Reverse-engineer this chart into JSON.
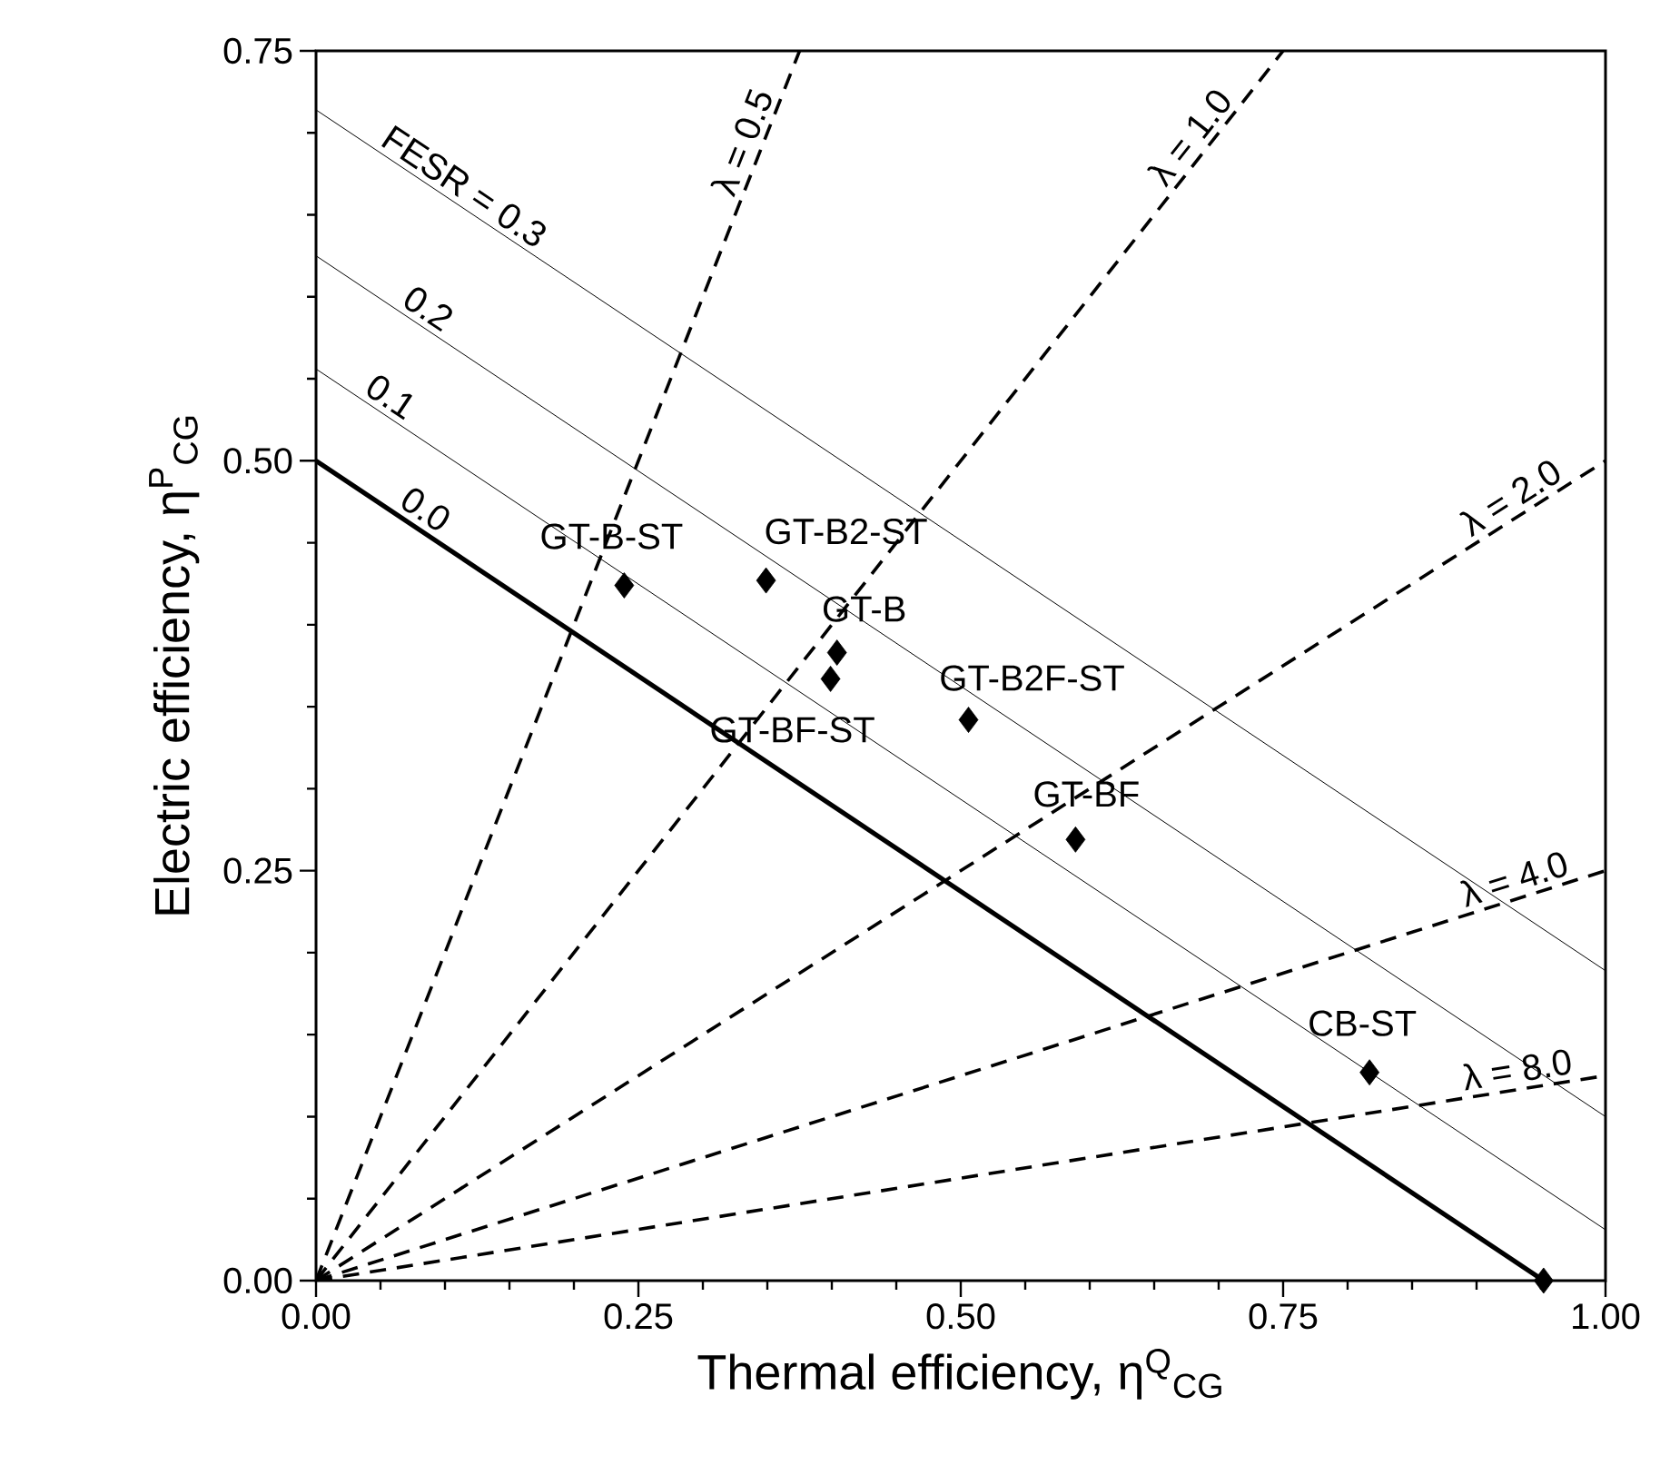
{
  "chart_data": {
    "type": "scatter",
    "xlabel": "Thermal efficiency, η$^{Q}$$_{CG}$",
    "ylabel": "Electric efficiency, η$^{P}$$_{CG}$",
    "xlim": [
      0,
      1
    ],
    "ylim": [
      0,
      0.75
    ],
    "xticks": [
      {
        "value": 0,
        "label": "0.00"
      },
      {
        "value": 0.25,
        "label": "0.25"
      },
      {
        "value": 0.5,
        "label": "0.50"
      },
      {
        "value": 0.75,
        "label": "0.75"
      },
      {
        "value": 1,
        "label": "1.00"
      }
    ],
    "yticks": [
      {
        "value": 0,
        "label": "0.00"
      },
      {
        "value": 0.25,
        "label": "0.25"
      },
      {
        "value": 0.5,
        "label": "0.50"
      },
      {
        "value": 0.75,
        "label": "0.75"
      }
    ],
    "series": [
      {
        "type": "scatter",
        "color": "#000000",
        "marker": "diamond",
        "x": [
          0.239,
          0.349,
          0.404,
          0.399,
          0.506,
          0.589,
          0.817,
          0.952
        ],
        "values": [
          0.424,
          0.427,
          0.383,
          0.367,
          0.342,
          0.269,
          0.127,
          0
        ]
      },
      {
        "type": "line",
        "name": "0.0",
        "color": "#000000",
        "line_style": "solid",
        "x": [
          0,
          0.952
        ],
        "values": [
          0.5,
          0
        ]
      },
      {
        "type": "line",
        "name": "0.1",
        "color": "#000000",
        "line_style": "solid",
        "x": [
          0,
          1
        ],
        "values": [
          0.556,
          0.031
        ]
      },
      {
        "type": "line",
        "name": "0.2",
        "color": "#000000",
        "line_style": "solid",
        "x": [
          0,
          1
        ],
        "values": [
          0.625,
          0.1
        ]
      },
      {
        "type": "line",
        "name": "FESR = 0.3",
        "color": "#000000",
        "line_style": "solid",
        "x": [
          0,
          1
        ],
        "values": [
          0.714,
          0.189
        ]
      },
      {
        "type": "line",
        "name": "λ = 0.5",
        "color": "#000000",
        "line_style": "dashed",
        "x": [
          0,
          0.375
        ],
        "values": [
          0,
          0.75
        ]
      },
      {
        "type": "line",
        "name": "λ = 1.0",
        "color": "#000000",
        "line_style": "dashed",
        "x": [
          0,
          0.75
        ],
        "values": [
          0,
          0.75
        ]
      },
      {
        "type": "line",
        "name": "λ = 2.0",
        "color": "#000000",
        "line_style": "dashed",
        "x": [
          0,
          1
        ],
        "values": [
          0,
          0.5
        ]
      },
      {
        "type": "line",
        "name": "λ = 4.0",
        "color": "#000000",
        "line_style": "dashed",
        "x": [
          0,
          1
        ],
        "values": [
          0,
          0.25
        ]
      },
      {
        "type": "line",
        "name": "λ = 8.0",
        "color": "#000000",
        "line_style": "dashed",
        "x": [
          0,
          1
        ],
        "values": [
          0,
          0.125
        ]
      }
    ],
    "annotations": [
      {
        "text": "GT-B-ST",
        "x": 0.239,
        "y": 0.424
      },
      {
        "text": "GT-B2-ST",
        "x": 0.349,
        "y": 0.427
      },
      {
        "text": "GT-B",
        "x": 0.404,
        "y": 0.383
      },
      {
        "text": "GT-BF-ST",
        "x": 0.399,
        "y": 0.367
      },
      {
        "text": "GT-B2F-ST",
        "x": 0.506,
        "y": 0.342
      },
      {
        "text": "GT-BF",
        "x": 0.589,
        "y": 0.269
      },
      {
        "text": "CB-ST",
        "x": 0.817,
        "y": 0.127
      }
    ]
  }
}
